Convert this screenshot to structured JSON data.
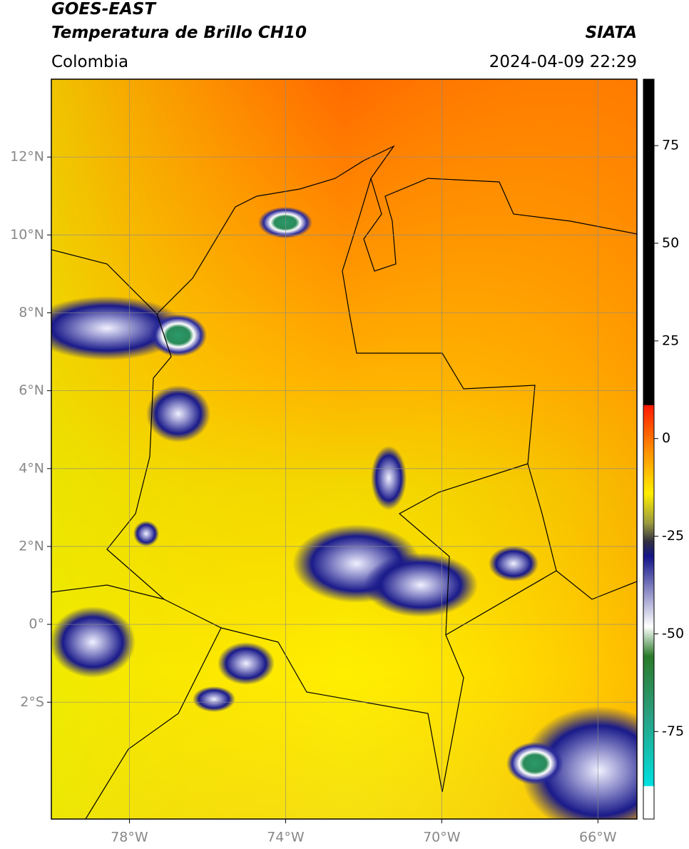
{
  "header": {
    "title": "GOES-EAST",
    "subtitle": "Temperatura de Brillo CH10",
    "region": "Colombia",
    "source": "SIATA",
    "datetime": "2024-04-09 22:29"
  },
  "map": {
    "lonlim": [
      -80,
      -65
    ],
    "latlim": [
      -5,
      14
    ],
    "lonticks": [
      {
        "value": -78,
        "label": "78°W"
      },
      {
        "value": -74,
        "label": "74°W"
      },
      {
        "value": -70,
        "label": "70°W"
      },
      {
        "value": -66,
        "label": "66°W"
      }
    ],
    "latticks": [
      {
        "value": 12,
        "label": "12°N"
      },
      {
        "value": 10,
        "label": "10°N"
      },
      {
        "value": 8,
        "label": "8°N"
      },
      {
        "value": 6,
        "label": "6°N"
      },
      {
        "value": 4,
        "label": "4°N"
      },
      {
        "value": 2,
        "label": "2°N"
      },
      {
        "value": 0,
        "label": "0°"
      },
      {
        "value": -2,
        "label": "2°S"
      }
    ]
  },
  "colorbar": {
    "lim": [
      -97.4,
      92
    ],
    "ticks": [
      75,
      50,
      25,
      0,
      -25,
      -50,
      -75
    ]
  }
}
